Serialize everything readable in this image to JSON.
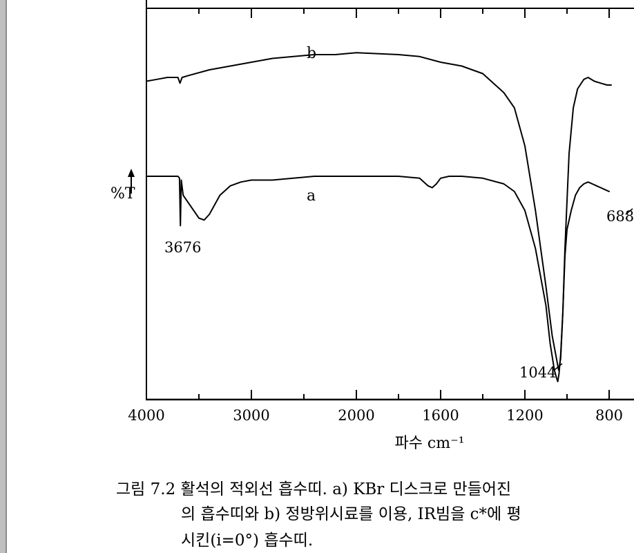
{
  "chart_data": {
    "type": "line",
    "title": "",
    "xlabel": "파수 cm⁻¹",
    "ylabel": "%T",
    "x_ticks": [
      "4000",
      "3000",
      "2000",
      "1600",
      "1200",
      "800"
    ],
    "series": [
      {
        "name": "b",
        "x": [
          4000,
          3900,
          3800,
          3700,
          3680,
          3660,
          3600,
          3400,
          3200,
          3000,
          2800,
          2600,
          2400,
          2200,
          2000,
          1800,
          1700,
          1600,
          1500,
          1400,
          1300,
          1250,
          1200,
          1150,
          1100,
          1070,
          1050,
          1040,
          1030,
          1020,
          1010,
          990,
          970,
          950,
          920,
          900,
          870,
          840,
          810,
          790
        ],
        "y": [
          79,
          79.5,
          80,
          80,
          78.5,
          80,
          80.5,
          82,
          83,
          84,
          85,
          85.5,
          86,
          86,
          86.5,
          86,
          85.5,
          84,
          83,
          81,
          76,
          72,
          62,
          45,
          25,
          12,
          6,
          3,
          6,
          18,
          35,
          60,
          72,
          77,
          79.5,
          80,
          79,
          78.5,
          78,
          78
        ]
      },
      {
        "name": "a",
        "x": [
          4000,
          3900,
          3800,
          3700,
          3685,
          3676,
          3668,
          3650,
          3600,
          3500,
          3450,
          3400,
          3300,
          3200,
          3100,
          3000,
          2800,
          2600,
          2400,
          2000,
          1800,
          1700,
          1660,
          1640,
          1620,
          1600,
          1560,
          1500,
          1400,
          1300,
          1250,
          1200,
          1150,
          1100,
          1080,
          1060,
          1050,
          1044,
          1038,
          1030,
          1020,
          1010,
          1000,
          980,
          960,
          940,
          920,
          900,
          880,
          860,
          840,
          820,
          800
        ],
        "y": [
          54,
          54,
          54,
          54,
          53.5,
          41,
          53,
          49,
          47,
          43,
          42.5,
          44,
          49,
          51.5,
          52.5,
          53,
          53,
          53.5,
          54,
          54,
          54,
          53.5,
          51.5,
          51,
          52,
          53.5,
          54,
          54,
          53.5,
          52,
          50,
          45,
          35,
          20,
          10,
          3,
          1,
          0,
          2,
          7,
          18,
          33,
          40,
          45,
          49,
          51,
          52,
          52.5,
          52,
          51.5,
          51,
          50.5,
          50
        ]
      }
    ],
    "annotations": [
      {
        "text": "3676",
        "x": 3676
      },
      {
        "text": "1044",
        "x": 1044
      },
      {
        "text": "688",
        "x": 688
      }
    ]
  },
  "caption": {
    "line1": "그림 7.2  활석의 적외선 흡수띠. a) KBr 디스크로 만들어진 ",
    "line2": "의 흡수띠와 b) 정방위시료를 이용, IR빔을 c*에 평",
    "line3": "시킨(i=0°) 흡수띠."
  }
}
